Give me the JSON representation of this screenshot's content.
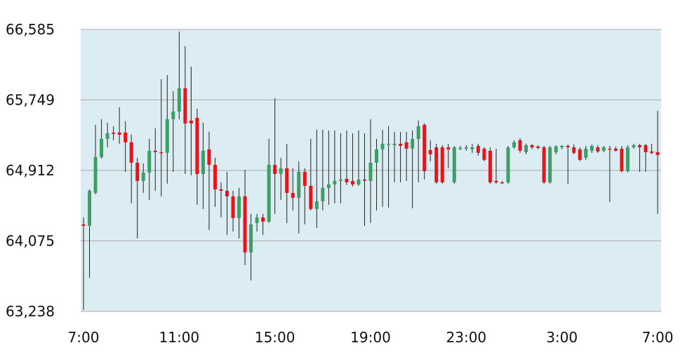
{
  "chart_data": {
    "type": "candlestick",
    "categories": [
      "7:00",
      null,
      null,
      null,
      null,
      null,
      null,
      null,
      null,
      null,
      null,
      null,
      null,
      null,
      null,
      null,
      "11:00",
      null,
      null,
      null,
      null,
      null,
      null,
      null,
      null,
      null,
      null,
      null,
      null,
      null,
      null,
      null,
      "15:00",
      null,
      null,
      null,
      null,
      null,
      null,
      null,
      null,
      null,
      null,
      null,
      null,
      null,
      null,
      null,
      "19:00",
      null,
      null,
      null,
      null,
      null,
      null,
      null,
      null,
      null,
      null,
      null,
      null,
      null,
      null,
      null,
      "23:00",
      null,
      null,
      null,
      null,
      null,
      null,
      null,
      null,
      null,
      null,
      null,
      null,
      null,
      null,
      null,
      "3:00",
      null,
      null,
      null,
      null,
      null,
      null,
      null,
      null,
      null,
      null,
      null,
      null,
      null,
      null,
      null,
      "7:00"
    ],
    "open": [
      64271,
      64254,
      64645,
      65070,
      65286,
      65361,
      65361,
      65361,
      65245,
      65003,
      64787,
      64887,
      65145,
      65128,
      65120,
      65520,
      65611,
      65886,
      65503,
      65536,
      64870,
      65162,
      64978,
      64687,
      64670,
      64604,
      64346,
      64604,
      63938,
      64287,
      64354,
      64304,
      64978,
      64870,
      64937,
      64645,
      64587,
      64895,
      64729,
      64454,
      64545,
      64704,
      64745,
      64787,
      64812,
      64787,
      64745,
      64803,
      64787,
      65003,
      65162,
      65220,
      65211,
      65228,
      65245,
      65170,
      65286,
      65453,
      65153,
      65186,
      65186,
      65186,
      64770,
      65170,
      65170,
      65162,
      65203,
      65170,
      65145,
      64787,
      64770,
      64770,
      65186,
      65270,
      65128,
      65211,
      65195,
      65186,
      64770,
      65128,
      65186,
      65203,
      65186,
      65162,
      65062,
      65145,
      65186,
      65145,
      65170,
      65170,
      65170,
      64903,
      65186,
      65211,
      65211,
      65137,
      65128
    ],
    "high": [
      64354,
      64687,
      65453,
      65520,
      65478,
      65436,
      65661,
      65495,
      65336,
      65062,
      64995,
      65286,
      65411,
      65994,
      66044,
      65853,
      66560,
      66385,
      66144,
      65644,
      65478,
      65370,
      65062,
      64770,
      64895,
      64670,
      64704,
      64920,
      64396,
      64396,
      64396,
      65286,
      65769,
      65062,
      65228,
      64937,
      65020,
      64937,
      65286,
      65395,
      65395,
      65386,
      65386,
      65353,
      65386,
      65353,
      65386,
      65353,
      65520,
      65286,
      65395,
      65436,
      65370,
      65370,
      65370,
      65386,
      65503,
      65470,
      65270,
      65228,
      65211,
      65228,
      65203,
      65203,
      65211,
      65228,
      65228,
      65186,
      65186,
      65170,
      64787,
      65203,
      65270,
      65295,
      65228,
      65228,
      65211,
      65203,
      65203,
      65211,
      65211,
      65220,
      65220,
      65186,
      65203,
      65220,
      65211,
      65203,
      65203,
      65195,
      65203,
      65211,
      65228,
      65228,
      65228,
      65228,
      65619
    ],
    "low": [
      63255,
      63638,
      64629,
      65053,
      65186,
      65270,
      65228,
      64895,
      64520,
      64104,
      64645,
      64562,
      64670,
      64604,
      64754,
      64895,
      65520,
      64870,
      64853,
      64504,
      64454,
      64204,
      64479,
      64354,
      64146,
      64187,
      64104,
      63788,
      63605,
      64187,
      64146,
      64287,
      64396,
      64562,
      64287,
      64437,
      64162,
      64271,
      64437,
      64229,
      64437,
      64504,
      64520,
      64520,
      64737,
      64720,
      64729,
      64254,
      64287,
      64437,
      64479,
      64471,
      64770,
      64770,
      64787,
      64462,
      64770,
      64803,
      65020,
      64754,
      64754,
      64937,
      64754,
      65153,
      65145,
      65120,
      65087,
      65020,
      64754,
      64754,
      64754,
      64754,
      65170,
      65120,
      65103,
      65162,
      65162,
      64754,
      64754,
      65103,
      65162,
      64754,
      65103,
      65020,
      65037,
      65120,
      65120,
      65128,
      64537,
      65137,
      64887,
      64887,
      65170,
      64895,
      64895,
      65103,
      64396
    ],
    "close": [
      64254,
      64670,
      65070,
      65286,
      65353,
      65345,
      65336,
      65245,
      65003,
      64787,
      64887,
      65145,
      65128,
      65120,
      65520,
      65611,
      65886,
      65470,
      65470,
      64870,
      65145,
      64978,
      64687,
      64670,
      64604,
      64346,
      64604,
      63938,
      64271,
      64354,
      64304,
      64978,
      64870,
      64937,
      64645,
      64587,
      64895,
      64729,
      64454,
      64545,
      64704,
      64745,
      64787,
      64803,
      64770,
      64745,
      64803,
      64787,
      65003,
      65162,
      65228,
      65228,
      65228,
      65203,
      65170,
      65286,
      65436,
      64903,
      65103,
      64770,
      64770,
      65162,
      65186,
      65178,
      65186,
      65186,
      65120,
      65037,
      64770,
      64770,
      64762,
      65186,
      65245,
      65145,
      65211,
      65186,
      65178,
      64770,
      65186,
      65195,
      65203,
      65186,
      65120,
      65037,
      65170,
      65203,
      65137,
      65186,
      65162,
      65145,
      64903,
      65186,
      65211,
      65186,
      65128,
      65120,
      65095
    ],
    "up_color": "#3d9e66",
    "down_color": "#e8141c",
    "ylim": [
      63238,
      66585
    ],
    "yticks": [
      {
        "value": 63238,
        "label": "63,238"
      },
      {
        "value": 64075,
        "label": "64,075"
      },
      {
        "value": 64912,
        "label": "64,912"
      },
      {
        "value": 65749,
        "label": "65,749"
      },
      {
        "value": 66585,
        "label": "66,585"
      }
    ],
    "grid": true
  }
}
